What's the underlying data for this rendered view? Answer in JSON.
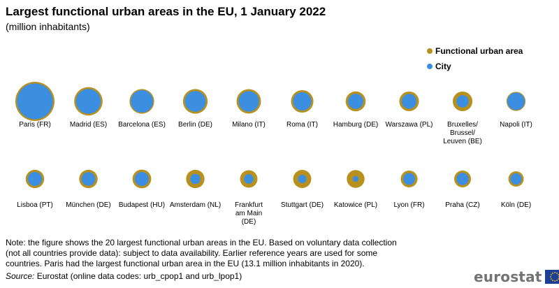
{
  "title": "Largest functional urban areas in the EU, 1 January 2022",
  "subtitle": "(million inhabitants)",
  "colors": {
    "fua": "#B8901E",
    "city": "#3C8FE0"
  },
  "chart_data": {
    "type": "bubble",
    "value_unit": "million inhabitants",
    "legend_position": "top-right",
    "series": [
      {
        "name": "Functional urban area",
        "key": "fua"
      },
      {
        "name": "City",
        "key": "city"
      }
    ],
    "items": [
      {
        "label": [
          "Paris (FR)"
        ],
        "fua": 13.1,
        "city": 11.0
      },
      {
        "label": [
          "Madrid (ES)"
        ],
        "fua": 6.9,
        "city": 5.3
      },
      {
        "label": [
          "Barcelona (ES)"
        ],
        "fua": 5.2,
        "city": 4.3
      },
      {
        "label": [
          "Berlin (DE)"
        ],
        "fua": 5.2,
        "city": 3.7
      },
      {
        "label": [
          "Milano (IT)"
        ],
        "fua": 5.1,
        "city": 3.6
      },
      {
        "label": [
          "Roma (IT)"
        ],
        "fua": 4.3,
        "city": 2.9
      },
      {
        "label": [
          "Hamburg (DE)"
        ],
        "fua": 3.4,
        "city": 2.0
      },
      {
        "label": [
          "Warszawa (PL)"
        ],
        "fua": 3.3,
        "city": 1.9
      },
      {
        "label": [
          "Bruxelles/",
          "Brussel/",
          "Leuven (BE)"
        ],
        "fua": 3.3,
        "city": 1.3
      },
      {
        "label": [
          "Napoli (IT)"
        ],
        "fua": 3.1,
        "city": 2.6
      },
      {
        "label": [
          "Lisboa (PT)"
        ],
        "fua": 2.9,
        "city": 1.7
      },
      {
        "label": [
          "München (DE)"
        ],
        "fua": 2.9,
        "city": 1.6
      },
      {
        "label": [
          "Budapest (HU)"
        ],
        "fua": 3.0,
        "city": 1.7
      },
      {
        "label": [
          "Amsterdam (NL)"
        ],
        "fua": 2.9,
        "city": 0.9
      },
      {
        "label": [
          "Frankfurt",
          "am Main",
          "(DE)"
        ],
        "fua": 2.6,
        "city": 0.8
      },
      {
        "label": [
          "Stuttgart (DE)"
        ],
        "fua": 2.8,
        "city": 0.6
      },
      {
        "label": [
          "Katowice (PL)"
        ],
        "fua": 2.7,
        "city": 0.3
      },
      {
        "label": [
          "Lyon (FR)"
        ],
        "fua": 2.4,
        "city": 1.2
      },
      {
        "label": [
          "Praha (CZ)"
        ],
        "fua": 2.4,
        "city": 1.3
      },
      {
        "label": [
          "Köln (DE)"
        ],
        "fua": 2.0,
        "city": 1.1
      }
    ]
  },
  "note": "Note: the figure shows the 20 largest functional urban areas in the EU. Based on voluntary data collection (not all countries provide data): subject to data availability. Earlier reference years are used for some countries. Paris had the largest functional urban area in the EU (13.1 million inhabitants in 2020).",
  "source_label": "Source:",
  "source_text": " Eurostat (online data codes: urb_cpop1 and urb_lpop1)",
  "logo_text": "eurostat"
}
